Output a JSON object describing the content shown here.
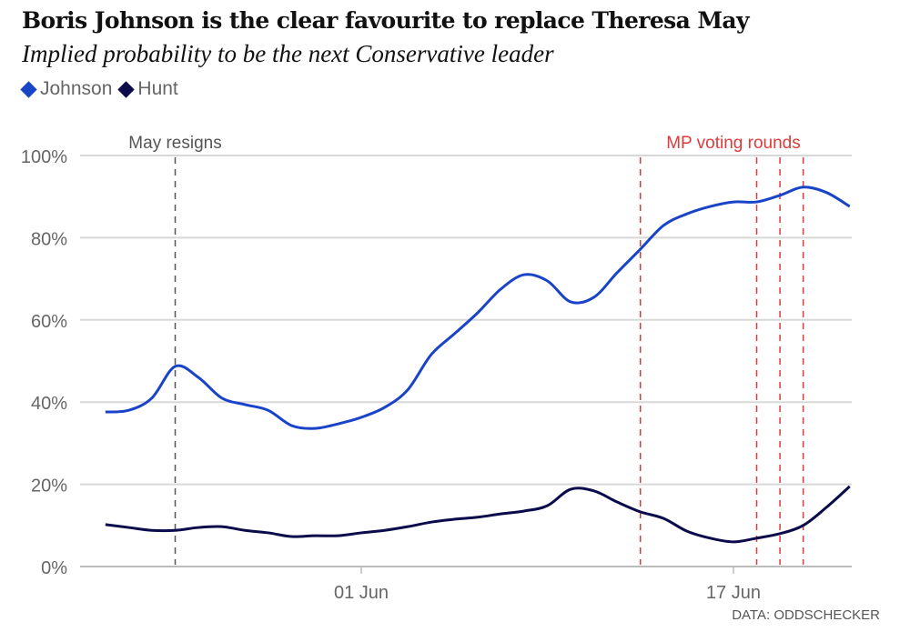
{
  "title": "Boris Johnson is the clear favourite to replace Theresa May",
  "subtitle": "Implied probability to be the next Conservative leader",
  "source": "DATA: ODDSCHECKER",
  "colors": {
    "johnson": "#1a44c8",
    "hunt": "#0b0a4a",
    "annotation_may": "#555555",
    "annotation_mp": "#e03a3a"
  },
  "chart_data": {
    "type": "line",
    "x": [
      "2019-05-21",
      "2019-05-22",
      "2019-05-23",
      "2019-05-24",
      "2019-05-25",
      "2019-05-26",
      "2019-05-27",
      "2019-05-28",
      "2019-05-29",
      "2019-05-30",
      "2019-05-31",
      "2019-06-01",
      "2019-06-02",
      "2019-06-03",
      "2019-06-04",
      "2019-06-05",
      "2019-06-06",
      "2019-06-07",
      "2019-06-08",
      "2019-06-09",
      "2019-06-10",
      "2019-06-11",
      "2019-06-12",
      "2019-06-13",
      "2019-06-14",
      "2019-06-15",
      "2019-06-16",
      "2019-06-17",
      "2019-06-18",
      "2019-06-19",
      "2019-06-20",
      "2019-06-21",
      "2019-06-22"
    ],
    "series": [
      {
        "name": "Johnson",
        "values": [
          37.6,
          38,
          41,
          48.7,
          46,
          41,
          39.4,
          38,
          34.3,
          33.6,
          34.7,
          36.3,
          38.7,
          43,
          51.5,
          56.6,
          61.7,
          67.5,
          71,
          69.5,
          64.4,
          65.5,
          71.5,
          77.2,
          83,
          85.8,
          87.6,
          88.7,
          88.7,
          90.3,
          92.3,
          91,
          87.6
        ]
      },
      {
        "name": "Hunt",
        "values": [
          10.2,
          9.5,
          8.8,
          8.8,
          9.5,
          9.7,
          8.8,
          8.2,
          7.3,
          7.5,
          7.5,
          8.2,
          8.8,
          9.7,
          10.8,
          11.5,
          12,
          12.8,
          13.5,
          14.8,
          18.8,
          18.4,
          15.7,
          13.3,
          11.7,
          8.6,
          6.9,
          6,
          6.9,
          8,
          10,
          14.4,
          19.5
        ]
      }
    ],
    "ylim": [
      0,
      100
    ],
    "yticks": [
      0,
      20,
      40,
      60,
      80,
      100
    ],
    "ytick_labels": [
      "0%",
      "20%",
      "40%",
      "60%",
      "80%",
      "100%"
    ],
    "xticks": [
      "2019-06-01",
      "2019-06-17"
    ],
    "xtick_labels": [
      "01 Jun",
      "17 Jun"
    ],
    "grid": true,
    "legend": "top-left",
    "annotations": [
      {
        "label": "May resigns",
        "dates": [
          "2019-05-24"
        ]
      },
      {
        "label": "MP voting rounds",
        "dates": [
          "2019-06-13",
          "2019-06-18",
          "2019-06-19",
          "2019-06-20"
        ]
      }
    ]
  }
}
